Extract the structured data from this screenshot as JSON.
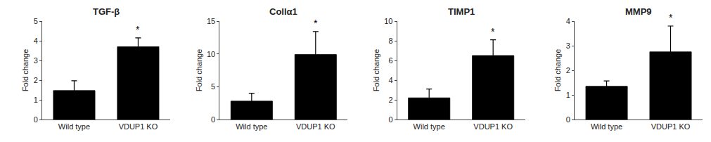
{
  "chart_data": [
    {
      "type": "bar",
      "title": "TGF-β",
      "categories": [
        "Wild type",
        "VDUP1 KO"
      ],
      "values": [
        1.47,
        3.7
      ],
      "errors": [
        0.5,
        0.45
      ],
      "color": "#000000",
      "ylabel": "Fold change",
      "ylim": [
        0,
        5
      ],
      "yticks": [
        0,
        1,
        2,
        3,
        4,
        5
      ],
      "grid": false,
      "annotations": [
        {
          "category": "VDUP1 KO",
          "text": "*"
        }
      ]
    },
    {
      "type": "bar",
      "title": "Collα1",
      "categories": [
        "Wild type",
        "VDUP1 KO"
      ],
      "values": [
        2.8,
        9.9
      ],
      "errors": [
        1.2,
        3.5
      ],
      "color": "#000000",
      "ylabel": "Fold change",
      "ylim": [
        0,
        15
      ],
      "yticks": [
        0,
        5,
        10,
        15
      ],
      "grid": false,
      "annotations": [
        {
          "category": "VDUP1 KO",
          "text": "*"
        }
      ]
    },
    {
      "type": "bar",
      "title": "TIMP1",
      "categories": [
        "Wild type",
        "VDUP1 KO"
      ],
      "values": [
        2.2,
        6.5
      ],
      "errors": [
        0.9,
        1.6
      ],
      "color": "#000000",
      "ylabel": "Fold change",
      "ylim": [
        0,
        10
      ],
      "yticks": [
        0,
        2,
        4,
        6,
        8,
        10
      ],
      "grid": false,
      "annotations": [
        {
          "category": "VDUP1 KO",
          "text": "*"
        }
      ]
    },
    {
      "type": "bar",
      "title": "MMP9",
      "categories": [
        "Wild type",
        "VDUP1 KO"
      ],
      "values": [
        1.35,
        2.75
      ],
      "errors": [
        0.22,
        1.05
      ],
      "color": "#000000",
      "ylabel": "Fold change",
      "ylim": [
        0,
        4
      ],
      "yticks": [
        0,
        1,
        2,
        3,
        4
      ],
      "grid": false,
      "annotations": [
        {
          "category": "VDUP1 KO",
          "text": "*"
        }
      ]
    }
  ]
}
